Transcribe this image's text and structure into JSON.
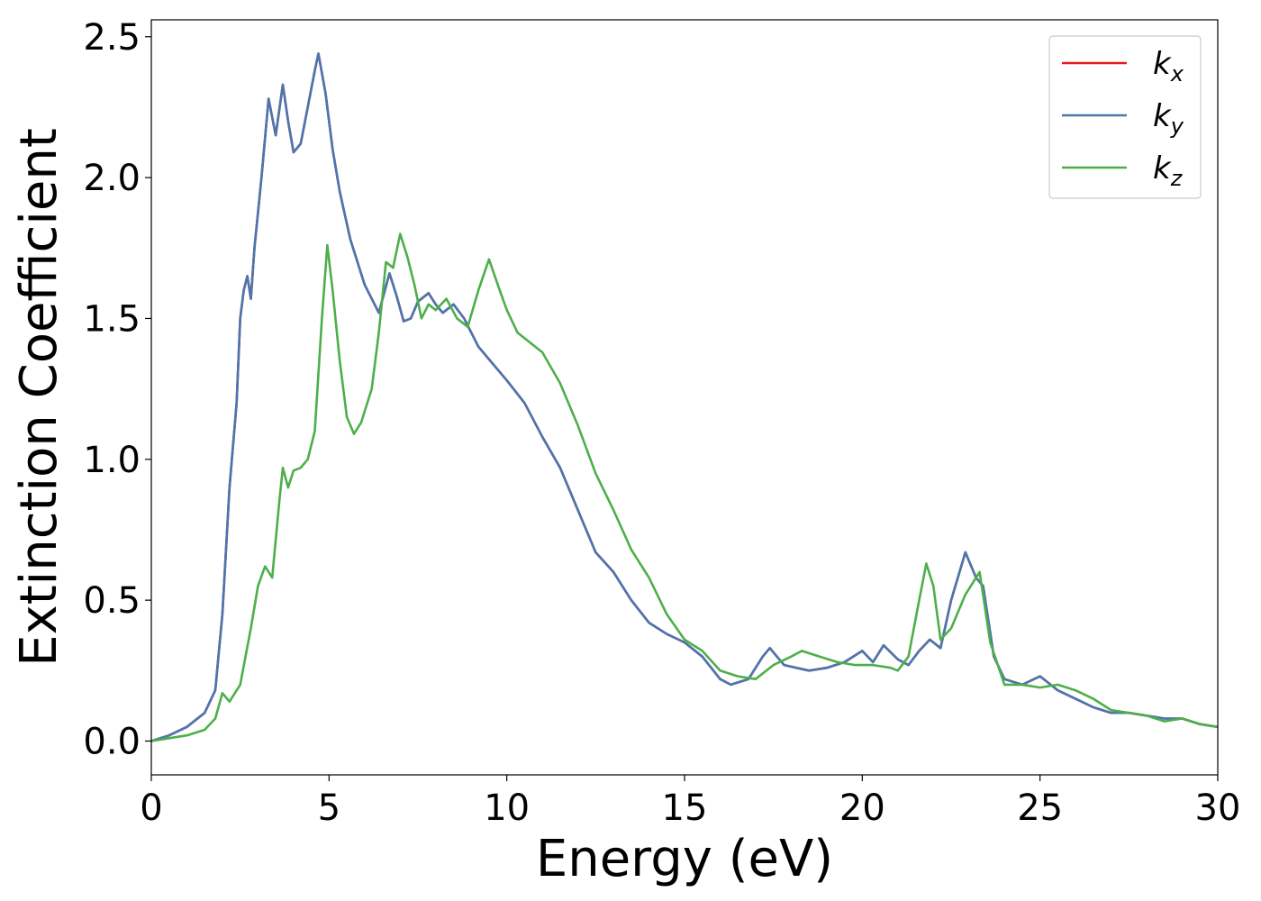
{
  "chart_data": {
    "type": "line",
    "title": "",
    "xlabel": "Energy (eV)",
    "ylabel": "Extinction Coefficient",
    "xlim": [
      0,
      30
    ],
    "ylim": [
      -0.12,
      2.56
    ],
    "xticks": [
      0,
      5,
      10,
      15,
      20,
      25,
      30
    ],
    "xtick_labels": [
      "0",
      "5",
      "10",
      "15",
      "20",
      "25",
      "30"
    ],
    "yticks": [
      0.0,
      0.5,
      1.0,
      1.5,
      2.0,
      2.5
    ],
    "ytick_labels": [
      "0.0",
      "0.5",
      "1.0",
      "1.5",
      "2.0",
      "2.5"
    ],
    "grid": false,
    "legend_position": "top-right",
    "series": [
      {
        "name": "k",
        "subscript": "x",
        "color": "#e41a1c",
        "points": [
          [
            0,
            0.0
          ],
          [
            0.5,
            0.02
          ],
          [
            1,
            0.05
          ],
          [
            1.5,
            0.1
          ],
          [
            1.8,
            0.18
          ],
          [
            2,
            0.45
          ],
          [
            2.2,
            0.9
          ],
          [
            2.4,
            1.2
          ],
          [
            2.5,
            1.5
          ],
          [
            2.6,
            1.6
          ],
          [
            2.7,
            1.65
          ],
          [
            2.8,
            1.57
          ],
          [
            2.9,
            1.75
          ],
          [
            3.1,
            2.0
          ],
          [
            3.3,
            2.28
          ],
          [
            3.5,
            2.15
          ],
          [
            3.7,
            2.33
          ],
          [
            3.85,
            2.2
          ],
          [
            4.0,
            2.09
          ],
          [
            4.2,
            2.12
          ],
          [
            4.4,
            2.25
          ],
          [
            4.6,
            2.38
          ],
          [
            4.7,
            2.44
          ],
          [
            4.9,
            2.3
          ],
          [
            5.1,
            2.1
          ],
          [
            5.3,
            1.95
          ],
          [
            5.6,
            1.78
          ],
          [
            6.0,
            1.62
          ],
          [
            6.4,
            1.52
          ],
          [
            6.7,
            1.66
          ],
          [
            6.9,
            1.58
          ],
          [
            7.1,
            1.49
          ],
          [
            7.3,
            1.5
          ],
          [
            7.5,
            1.56
          ],
          [
            7.8,
            1.59
          ],
          [
            8.0,
            1.55
          ],
          [
            8.2,
            1.52
          ],
          [
            8.5,
            1.55
          ],
          [
            8.8,
            1.5
          ],
          [
            9.2,
            1.4
          ],
          [
            9.6,
            1.34
          ],
          [
            10.0,
            1.28
          ],
          [
            10.5,
            1.2
          ],
          [
            11.0,
            1.08
          ],
          [
            11.5,
            0.97
          ],
          [
            12.0,
            0.82
          ],
          [
            12.5,
            0.67
          ],
          [
            13.0,
            0.6
          ],
          [
            13.5,
            0.5
          ],
          [
            14.0,
            0.42
          ],
          [
            14.5,
            0.38
          ],
          [
            15.0,
            0.35
          ],
          [
            15.5,
            0.3
          ],
          [
            16.0,
            0.22
          ],
          [
            16.3,
            0.2
          ],
          [
            16.8,
            0.22
          ],
          [
            17.2,
            0.3
          ],
          [
            17.4,
            0.33
          ],
          [
            17.8,
            0.27
          ],
          [
            18.5,
            0.25
          ],
          [
            19.0,
            0.26
          ],
          [
            19.5,
            0.28
          ],
          [
            20.0,
            0.32
          ],
          [
            20.3,
            0.28
          ],
          [
            20.6,
            0.34
          ],
          [
            21.0,
            0.29
          ],
          [
            21.3,
            0.27
          ],
          [
            21.6,
            0.32
          ],
          [
            21.9,
            0.36
          ],
          [
            22.2,
            0.33
          ],
          [
            22.5,
            0.5
          ],
          [
            22.9,
            0.67
          ],
          [
            23.2,
            0.58
          ],
          [
            23.4,
            0.55
          ],
          [
            23.7,
            0.3
          ],
          [
            24.0,
            0.22
          ],
          [
            24.5,
            0.2
          ],
          [
            25.0,
            0.23
          ],
          [
            25.5,
            0.18
          ],
          [
            26.0,
            0.15
          ],
          [
            26.5,
            0.12
          ],
          [
            27.0,
            0.1
          ],
          [
            27.5,
            0.1
          ],
          [
            28.0,
            0.09
          ],
          [
            28.5,
            0.08
          ],
          [
            29.0,
            0.08
          ],
          [
            29.5,
            0.06
          ],
          [
            30.0,
            0.05
          ]
        ]
      },
      {
        "name": "k",
        "subscript": "y",
        "color": "#4a76b0",
        "points": [
          [
            0,
            0.0
          ],
          [
            0.5,
            0.02
          ],
          [
            1,
            0.05
          ],
          [
            1.5,
            0.1
          ],
          [
            1.8,
            0.18
          ],
          [
            2,
            0.45
          ],
          [
            2.2,
            0.9
          ],
          [
            2.4,
            1.2
          ],
          [
            2.5,
            1.5
          ],
          [
            2.6,
            1.6
          ],
          [
            2.7,
            1.65
          ],
          [
            2.8,
            1.57
          ],
          [
            2.9,
            1.75
          ],
          [
            3.1,
            2.0
          ],
          [
            3.3,
            2.28
          ],
          [
            3.5,
            2.15
          ],
          [
            3.7,
            2.33
          ],
          [
            3.85,
            2.2
          ],
          [
            4.0,
            2.09
          ],
          [
            4.2,
            2.12
          ],
          [
            4.4,
            2.25
          ],
          [
            4.6,
            2.38
          ],
          [
            4.7,
            2.44
          ],
          [
            4.9,
            2.3
          ],
          [
            5.1,
            2.1
          ],
          [
            5.3,
            1.95
          ],
          [
            5.6,
            1.78
          ],
          [
            6.0,
            1.62
          ],
          [
            6.4,
            1.52
          ],
          [
            6.7,
            1.66
          ],
          [
            6.9,
            1.58
          ],
          [
            7.1,
            1.49
          ],
          [
            7.3,
            1.5
          ],
          [
            7.5,
            1.56
          ],
          [
            7.8,
            1.59
          ],
          [
            8.0,
            1.55
          ],
          [
            8.2,
            1.52
          ],
          [
            8.5,
            1.55
          ],
          [
            8.8,
            1.5
          ],
          [
            9.2,
            1.4
          ],
          [
            9.6,
            1.34
          ],
          [
            10.0,
            1.28
          ],
          [
            10.5,
            1.2
          ],
          [
            11.0,
            1.08
          ],
          [
            11.5,
            0.97
          ],
          [
            12.0,
            0.82
          ],
          [
            12.5,
            0.67
          ],
          [
            13.0,
            0.6
          ],
          [
            13.5,
            0.5
          ],
          [
            14.0,
            0.42
          ],
          [
            14.5,
            0.38
          ],
          [
            15.0,
            0.35
          ],
          [
            15.5,
            0.3
          ],
          [
            16.0,
            0.22
          ],
          [
            16.3,
            0.2
          ],
          [
            16.8,
            0.22
          ],
          [
            17.2,
            0.3
          ],
          [
            17.4,
            0.33
          ],
          [
            17.8,
            0.27
          ],
          [
            18.5,
            0.25
          ],
          [
            19.0,
            0.26
          ],
          [
            19.5,
            0.28
          ],
          [
            20.0,
            0.32
          ],
          [
            20.3,
            0.28
          ],
          [
            20.6,
            0.34
          ],
          [
            21.0,
            0.29
          ],
          [
            21.3,
            0.27
          ],
          [
            21.6,
            0.32
          ],
          [
            21.9,
            0.36
          ],
          [
            22.2,
            0.33
          ],
          [
            22.5,
            0.5
          ],
          [
            22.9,
            0.67
          ],
          [
            23.2,
            0.58
          ],
          [
            23.4,
            0.55
          ],
          [
            23.7,
            0.3
          ],
          [
            24.0,
            0.22
          ],
          [
            24.5,
            0.2
          ],
          [
            25.0,
            0.23
          ],
          [
            25.5,
            0.18
          ],
          [
            26.0,
            0.15
          ],
          [
            26.5,
            0.12
          ],
          [
            27.0,
            0.1
          ],
          [
            27.5,
            0.1
          ],
          [
            28.0,
            0.09
          ],
          [
            28.5,
            0.08
          ],
          [
            29.0,
            0.08
          ],
          [
            29.5,
            0.06
          ],
          [
            30.0,
            0.05
          ]
        ]
      },
      {
        "name": "k",
        "subscript": "z",
        "color": "#4daf4a",
        "points": [
          [
            0,
            0.0
          ],
          [
            1,
            0.02
          ],
          [
            1.5,
            0.04
          ],
          [
            1.8,
            0.08
          ],
          [
            2.0,
            0.17
          ],
          [
            2.2,
            0.14
          ],
          [
            2.5,
            0.2
          ],
          [
            2.8,
            0.4
          ],
          [
            3.0,
            0.55
          ],
          [
            3.2,
            0.62
          ],
          [
            3.4,
            0.58
          ],
          [
            3.6,
            0.85
          ],
          [
            3.7,
            0.97
          ],
          [
            3.85,
            0.9
          ],
          [
            4.0,
            0.96
          ],
          [
            4.2,
            0.97
          ],
          [
            4.4,
            1.0
          ],
          [
            4.6,
            1.1
          ],
          [
            4.8,
            1.5
          ],
          [
            4.95,
            1.76
          ],
          [
            5.1,
            1.6
          ],
          [
            5.3,
            1.35
          ],
          [
            5.5,
            1.15
          ],
          [
            5.7,
            1.09
          ],
          [
            5.9,
            1.13
          ],
          [
            6.2,
            1.25
          ],
          [
            6.4,
            1.45
          ],
          [
            6.6,
            1.7
          ],
          [
            6.8,
            1.68
          ],
          [
            7.0,
            1.8
          ],
          [
            7.2,
            1.72
          ],
          [
            7.4,
            1.62
          ],
          [
            7.6,
            1.5
          ],
          [
            7.8,
            1.55
          ],
          [
            8.0,
            1.53
          ],
          [
            8.3,
            1.57
          ],
          [
            8.6,
            1.5
          ],
          [
            8.9,
            1.47
          ],
          [
            9.2,
            1.6
          ],
          [
            9.5,
            1.71
          ],
          [
            9.8,
            1.6
          ],
          [
            10.0,
            1.53
          ],
          [
            10.3,
            1.45
          ],
          [
            10.6,
            1.42
          ],
          [
            11.0,
            1.38
          ],
          [
            11.5,
            1.27
          ],
          [
            12.0,
            1.12
          ],
          [
            12.5,
            0.95
          ],
          [
            13.0,
            0.82
          ],
          [
            13.5,
            0.68
          ],
          [
            14.0,
            0.58
          ],
          [
            14.5,
            0.45
          ],
          [
            15.0,
            0.36
          ],
          [
            15.5,
            0.32
          ],
          [
            16.0,
            0.25
          ],
          [
            16.5,
            0.23
          ],
          [
            17.0,
            0.22
          ],
          [
            17.5,
            0.27
          ],
          [
            18.0,
            0.3
          ],
          [
            18.3,
            0.32
          ],
          [
            18.8,
            0.3
          ],
          [
            19.3,
            0.28
          ],
          [
            19.8,
            0.27
          ],
          [
            20.3,
            0.27
          ],
          [
            20.8,
            0.26
          ],
          [
            21.0,
            0.25
          ],
          [
            21.3,
            0.3
          ],
          [
            21.6,
            0.5
          ],
          [
            21.8,
            0.63
          ],
          [
            22.0,
            0.55
          ],
          [
            22.2,
            0.36
          ],
          [
            22.5,
            0.4
          ],
          [
            22.9,
            0.52
          ],
          [
            23.3,
            0.6
          ],
          [
            23.6,
            0.35
          ],
          [
            24.0,
            0.2
          ],
          [
            24.5,
            0.2
          ],
          [
            25.0,
            0.19
          ],
          [
            25.5,
            0.2
          ],
          [
            26.0,
            0.18
          ],
          [
            26.5,
            0.15
          ],
          [
            27.0,
            0.11
          ],
          [
            27.5,
            0.1
          ],
          [
            28.0,
            0.09
          ],
          [
            28.5,
            0.07
          ],
          [
            29.0,
            0.08
          ],
          [
            29.5,
            0.06
          ],
          [
            30.0,
            0.05
          ]
        ]
      }
    ]
  }
}
